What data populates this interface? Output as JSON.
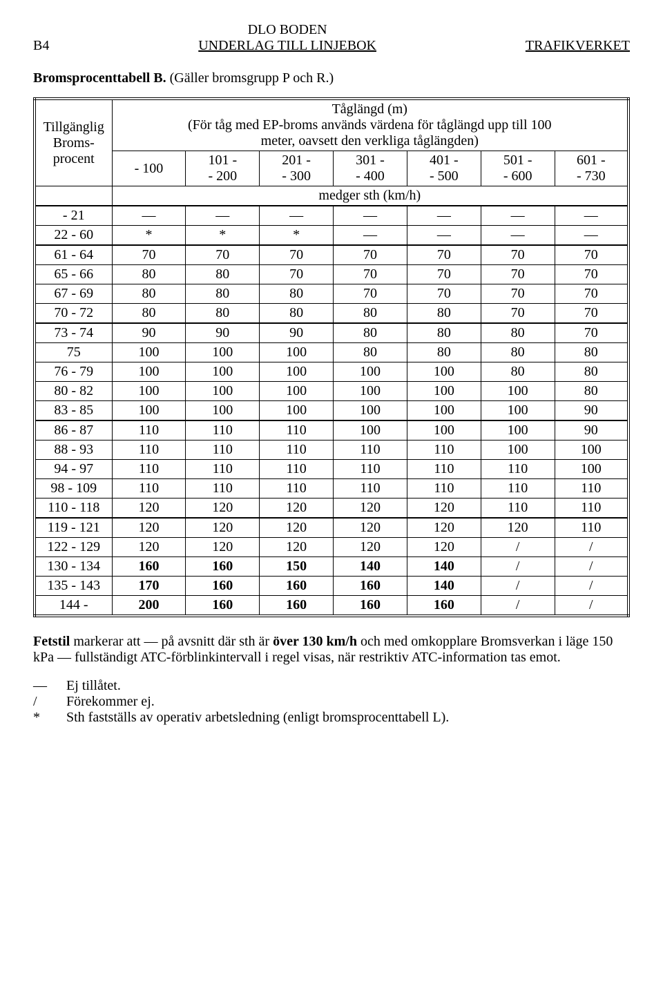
{
  "header": {
    "left": "B4",
    "center_line1": "DLO BODEN",
    "center_line2": "UNDERLAG TILL LINJEBOK",
    "right": "TRAFIKVERKET"
  },
  "title": {
    "bold": "Bromsprocenttabell B.",
    "rest": " (Gäller bromsgrupp P och R.)"
  },
  "table": {
    "col1_header_line1": "Tillgänglig",
    "col1_header_line2": "Broms-",
    "col1_header_line3": "procent",
    "top_header_line1": "Tåglängd (m)",
    "top_header_line2": "(För tåg med EP-broms används värdena för tåglängd upp till 100",
    "top_header_line3": "meter, oavsett den verkliga tåglängden)",
    "range_headers": [
      {
        "l1": "- 100",
        "l2": ""
      },
      {
        "l1": "101 -",
        "l2": "- 200"
      },
      {
        "l1": "201 -",
        "l2": "- 300"
      },
      {
        "l1": "301 -",
        "l2": "- 400"
      },
      {
        "l1": "401 -",
        "l2": "- 500"
      },
      {
        "l1": "501 -",
        "l2": "- 600"
      },
      {
        "l1": "601 -",
        "l2": "- 730"
      }
    ],
    "medger_label": "medger sth (km/h)",
    "groups": [
      [
        {
          "label": "- 21",
          "cells": [
            "—",
            "—",
            "—",
            "—",
            "—",
            "—",
            "—"
          ]
        },
        {
          "label": "22 - 60",
          "cells": [
            "*",
            "*",
            "*",
            "—",
            "—",
            "—",
            "—"
          ]
        }
      ],
      [
        {
          "label": "61 - 64",
          "cells": [
            "70",
            "70",
            "70",
            "70",
            "70",
            "70",
            "70"
          ]
        },
        {
          "label": "65 - 66",
          "cells": [
            "80",
            "80",
            "70",
            "70",
            "70",
            "70",
            "70"
          ]
        },
        {
          "label": "67 - 69",
          "cells": [
            "80",
            "80",
            "80",
            "70",
            "70",
            "70",
            "70"
          ]
        },
        {
          "label": "70 - 72",
          "cells": [
            "80",
            "80",
            "80",
            "80",
            "80",
            "70",
            "70"
          ]
        }
      ],
      [
        {
          "label": "73 - 74",
          "cells": [
            "90",
            "90",
            "90",
            "80",
            "80",
            "80",
            "70"
          ]
        },
        {
          "label": "75",
          "cells": [
            "100",
            "100",
            "100",
            "80",
            "80",
            "80",
            "80"
          ]
        },
        {
          "label": "76 - 79",
          "cells": [
            "100",
            "100",
            "100",
            "100",
            "100",
            "80",
            "80"
          ]
        },
        {
          "label": "80 - 82",
          "cells": [
            "100",
            "100",
            "100",
            "100",
            "100",
            "100",
            "80"
          ]
        },
        {
          "label": "83 - 85",
          "cells": [
            "100",
            "100",
            "100",
            "100",
            "100",
            "100",
            "90"
          ]
        }
      ],
      [
        {
          "label": "86 - 87",
          "cells": [
            "110",
            "110",
            "110",
            "100",
            "100",
            "100",
            "90"
          ]
        },
        {
          "label": "88 - 93",
          "cells": [
            "110",
            "110",
            "110",
            "110",
            "110",
            "100",
            "100"
          ]
        },
        {
          "label": "94 - 97",
          "cells": [
            "110",
            "110",
            "110",
            "110",
            "110",
            "110",
            "100"
          ]
        },
        {
          "label": "98 - 109",
          "cells": [
            "110",
            "110",
            "110",
            "110",
            "110",
            "110",
            "110"
          ]
        },
        {
          "label": "110 - 118",
          "cells": [
            "120",
            "120",
            "120",
            "120",
            "120",
            "110",
            "110"
          ]
        }
      ],
      [
        {
          "label": "119 - 121",
          "cells": [
            "120",
            "120",
            "120",
            "120",
            "120",
            "120",
            "110"
          ]
        },
        {
          "label": "122 - 129",
          "cells": [
            "120",
            "120",
            "120",
            "120",
            "120",
            "/",
            "/"
          ]
        },
        {
          "label": "130 - 134",
          "cells": [
            "160",
            "160",
            "150",
            "140",
            "140",
            "/",
            "/"
          ],
          "bold_idx": [
            0,
            1,
            2,
            3,
            4
          ]
        },
        {
          "label": "135 - 143",
          "cells": [
            "170",
            "160",
            "160",
            "160",
            "140",
            "/",
            "/"
          ],
          "bold_idx": [
            0,
            1,
            2,
            3,
            4
          ]
        },
        {
          "label": "144 -",
          "cells": [
            "200",
            "160",
            "160",
            "160",
            "160",
            "/",
            "/"
          ],
          "bold_idx": [
            0,
            1,
            2,
            3,
            4
          ]
        }
      ]
    ]
  },
  "notes": {
    "line1a": "Fetstil",
    "line1b": " markerar att — på avsnitt där sth är ",
    "line1c": "över 130 km/h",
    "line1d": " och med omkopplare Bromsverkan i läge 150 kPa — fullständigt ATC-förblinkintervall i regel visas, när restriktiv ATC-information tas emot."
  },
  "legend": [
    {
      "sym": "—",
      "txt": "Ej tillåtet."
    },
    {
      "sym": "/",
      "txt": "Förekommer ej."
    },
    {
      "sym": "*",
      "txt": "Sth fastställs av operativ arbetsledning (enligt bromsprocenttabell L)."
    }
  ]
}
